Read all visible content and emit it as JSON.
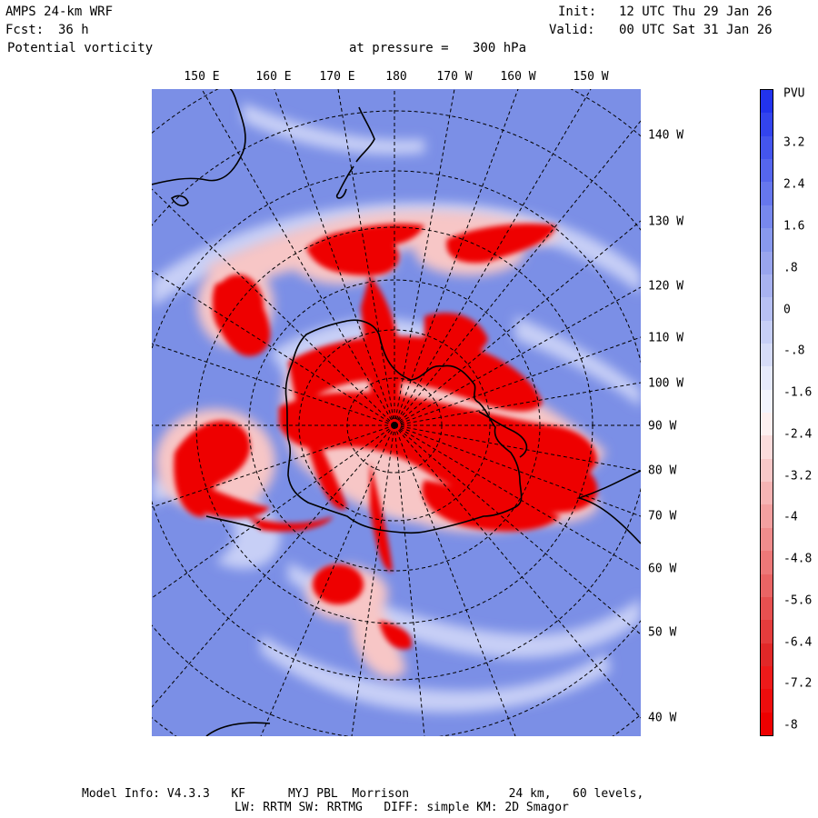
{
  "header": {
    "model": "AMPS 24-km WRF",
    "forecast_label": "Fcst:",
    "forecast_hours": "36 h",
    "variable": "Potential vorticity",
    "pressure_label": "at pressure =",
    "pressure_value": "300 hPa",
    "init_label": "Init:",
    "init_time": "12 UTC Thu 29 Jan 26",
    "valid_label": "Valid:",
    "valid_time": "00 UTC Sat 31 Jan 26"
  },
  "map": {
    "longitude_labels_top": [
      "150 E",
      "160 E",
      "170 E",
      "180",
      "170 W",
      "160 W",
      "150 W"
    ],
    "longitude_labels_right": [
      "140 W",
      "130 W",
      "120 W",
      "110 W",
      "100 W",
      "90 W",
      "80 W",
      "70 W",
      "60 W",
      "50 W",
      "40 W"
    ],
    "colors": {
      "background_blue": "#7b8fe6",
      "positive_light": "#c7cff6",
      "negative_red": "#ee0000",
      "negative_light": "#f7c6c6",
      "coastline": "#000000",
      "gridline": "#000000"
    }
  },
  "colorbar": {
    "unit": "PVU",
    "labels": [
      "3.2",
      "2.4",
      "1.6",
      ".8",
      "0",
      "-.8",
      "-1.6",
      "-2.4",
      "-3.2",
      "-4",
      "-4.8",
      "-5.6",
      "-6.4",
      "-7.2",
      "-8"
    ],
    "blue_colors": [
      "#2233ee",
      "#3344ee",
      "#4455ee",
      "#5566ee",
      "#6677ee",
      "#7788ee",
      "#8899ee",
      "#99a5ee",
      "#a8b2f0",
      "#b7c0f3",
      "#c7cff6",
      "#d6dcf8",
      "#e6eafb",
      "#f2f4fd"
    ],
    "red_colors": [
      "#fdf0f0",
      "#fbdcdc",
      "#f8c8c8",
      "#f6b4b4",
      "#f3a0a0",
      "#f08c8c",
      "#ed7878",
      "#ea6464",
      "#e75050",
      "#e43c3c",
      "#e12828",
      "#ee1a1a",
      "#ee0d0d",
      "#ee0000"
    ]
  },
  "footer": {
    "line1": "Model Info: V4.3.3   KF      MYJ PBL  Morrison              24 km,   60 levels,",
    "line2": "LW: RRTM SW: RRTMG   DIFF: simple KM: 2D Smagor"
  }
}
